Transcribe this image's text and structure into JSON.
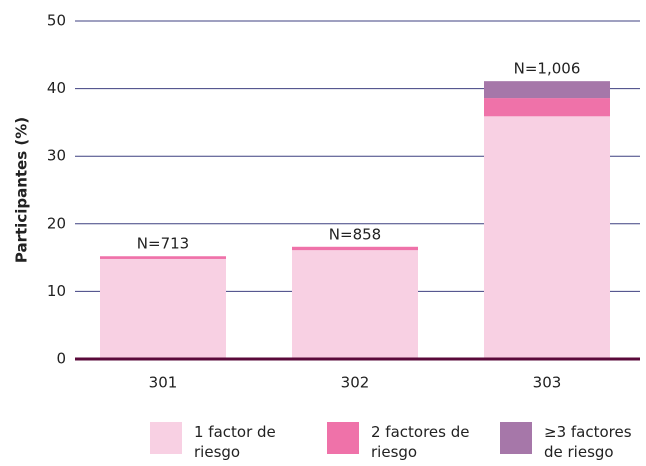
{
  "chart_data": {
    "type": "stacked_bar",
    "y_label": "Participantes (%)",
    "categories": [
      "301",
      "302",
      "303"
    ],
    "series": [
      {
        "name": "1 factor de riesgo",
        "color": "#f8d0e3",
        "values": [
          14.8,
          16.1,
          35.9
        ]
      },
      {
        "name": "2 factores de riesgo",
        "color": "#ef72a9",
        "values": [
          0.4,
          0.5,
          2.7
        ]
      },
      {
        "name": "≥3 factores de riesgo",
        "color": "#a677a9",
        "values": [
          0,
          0,
          2.5
        ]
      }
    ],
    "total_labels": [
      "N=713",
      "N=858",
      "N=1,006"
    ],
    "ylim": [
      0,
      50
    ],
    "yticks": [
      0,
      10,
      20,
      30,
      40,
      50
    ],
    "grid": true
  }
}
